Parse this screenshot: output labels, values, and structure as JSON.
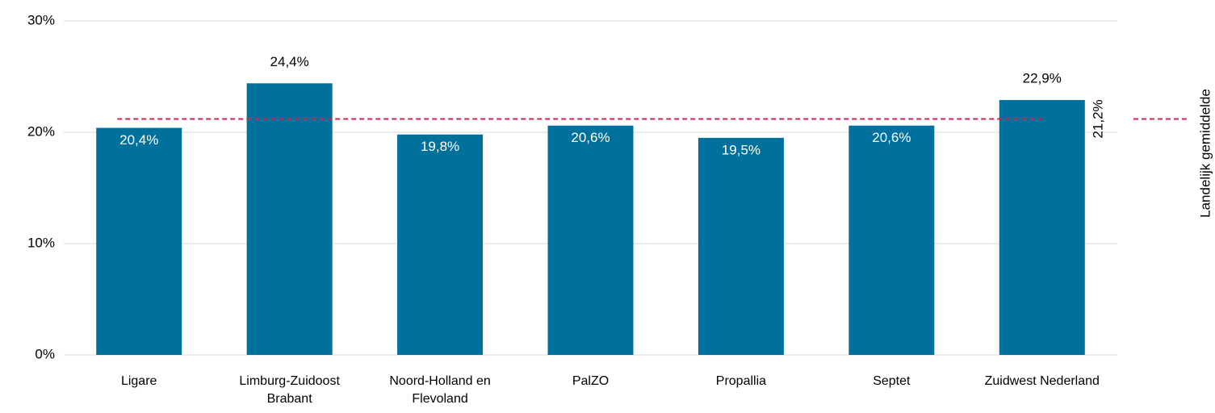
{
  "chart_data": {
    "type": "bar",
    "categories": [
      "Ligare",
      "Limburg-Zuidoost Brabant",
      "Noord-Holland en Flevoland",
      "PalZO",
      "Propallia",
      "Septet",
      "Zuidwest Nederland"
    ],
    "values": [
      20.4,
      24.4,
      19.8,
      20.6,
      19.5,
      20.6,
      22.9
    ],
    "value_labels": [
      "20,4%",
      "24,4%",
      "19,8%",
      "20,6%",
      "19,5%",
      "20,6%",
      "22,9%"
    ],
    "color": "#00719c",
    "ylim": [
      0,
      30
    ],
    "yticks": [
      {
        "value": 0,
        "label": "0%"
      },
      {
        "value": 10,
        "label": "10%"
      },
      {
        "value": 20,
        "label": "20%"
      },
      {
        "value": 30,
        "label": "30%"
      }
    ],
    "grid": true,
    "reference": {
      "name": "Landelijk gemiddelde",
      "value": 21.2,
      "value_label": "21,2%",
      "color": "#d6204f"
    }
  }
}
